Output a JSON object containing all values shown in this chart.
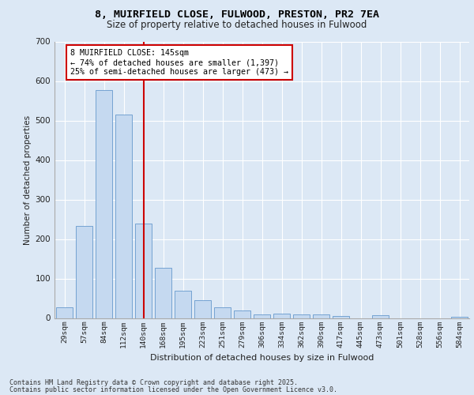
{
  "title_line1": "8, MUIRFIELD CLOSE, FULWOOD, PRESTON, PR2 7EA",
  "title_line2": "Size of property relative to detached houses in Fulwood",
  "xlabel": "Distribution of detached houses by size in Fulwood",
  "ylabel": "Number of detached properties",
  "categories": [
    "29sqm",
    "57sqm",
    "84sqm",
    "112sqm",
    "140sqm",
    "168sqm",
    "195sqm",
    "223sqm",
    "251sqm",
    "279sqm",
    "306sqm",
    "334sqm",
    "362sqm",
    "390sqm",
    "417sqm",
    "445sqm",
    "473sqm",
    "501sqm",
    "528sqm",
    "556sqm",
    "584sqm"
  ],
  "values": [
    27,
    234,
    578,
    515,
    240,
    127,
    70,
    46,
    28,
    20,
    10,
    11,
    9,
    9,
    5,
    0,
    8,
    0,
    0,
    0,
    4
  ],
  "bar_color": "#c5d9f0",
  "bar_edge_color": "#6699cc",
  "vline_x_index": 4,
  "vline_color": "#cc0000",
  "annotation_title": "8 MUIRFIELD CLOSE: 145sqm",
  "annotation_line1": "← 74% of detached houses are smaller (1,397)",
  "annotation_line2": "25% of semi-detached houses are larger (473) →",
  "annotation_box_color": "#ffffff",
  "annotation_box_edge": "#cc0000",
  "fig_bg_color": "#dce8f5",
  "plot_bg_color": "#dce8f5",
  "grid_color": "#ffffff",
  "ylim": [
    0,
    700
  ],
  "yticks": [
    0,
    100,
    200,
    300,
    400,
    500,
    600,
    700
  ],
  "footer_line1": "Contains HM Land Registry data © Crown copyright and database right 2025.",
  "footer_line2": "Contains public sector information licensed under the Open Government Licence v3.0."
}
